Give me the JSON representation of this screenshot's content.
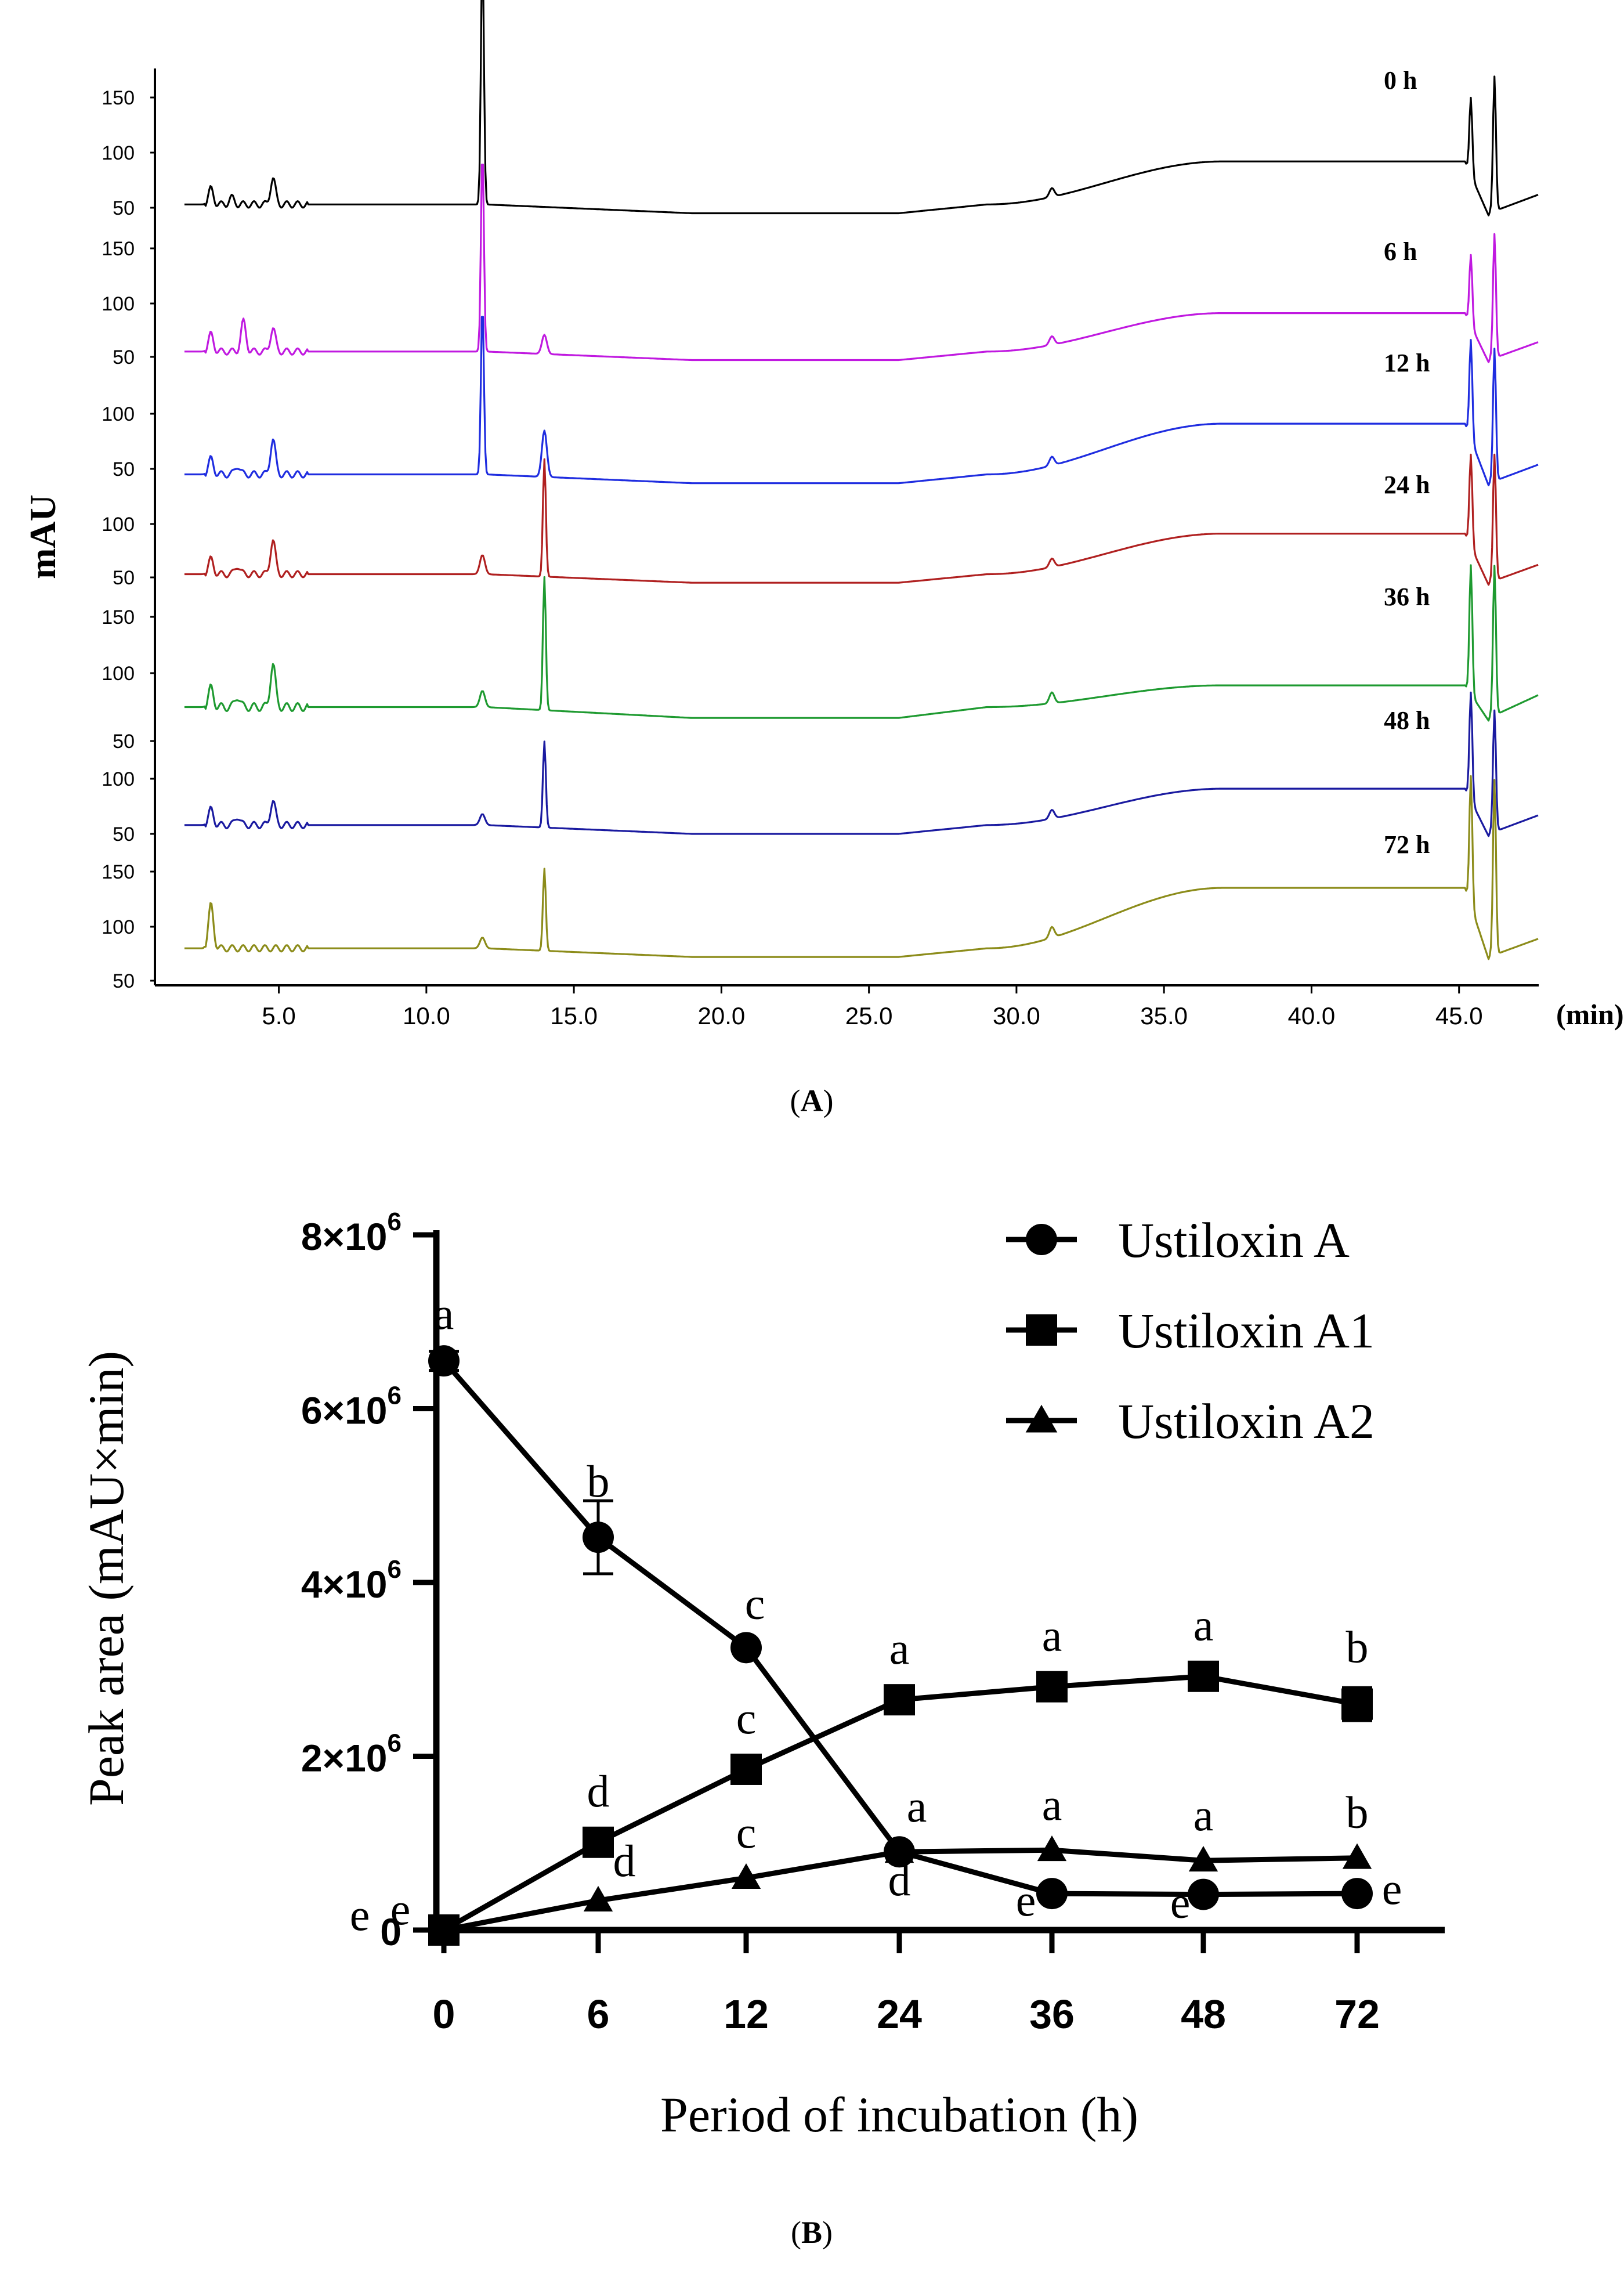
{
  "panel_a": {
    "panel_label_prefix": "(",
    "panel_label_letter": "A",
    "panel_label_suffix": ")"
  },
  "panel_b": {
    "panel_label_prefix": "(",
    "panel_label_letter": "B",
    "panel_label_suffix": ")"
  },
  "chart_data": [
    {
      "type": "line",
      "title": "",
      "xlabel": "(min)",
      "ylabel": "mAU",
      "xlim": [
        0.8,
        47.7
      ],
      "xticks": [
        "5.0",
        "10.0",
        "15.0",
        "20.0",
        "25.0",
        "30.0",
        "35.0",
        "40.0",
        "45.0"
      ],
      "xtick_values": [
        5,
        10,
        15,
        20,
        25,
        30,
        35,
        40,
        45
      ],
      "traces": [
        {
          "name": "0 h",
          "color": "#000000",
          "yticks": [
            "150",
            "100",
            "50"
          ],
          "baseline": 53,
          "humpTop": 92,
          "peaks": [
            [
              2.7,
              14
            ],
            [
              3.4,
              6
            ],
            [
              4.8,
              24
            ],
            [
              11.9,
              235
            ],
            [
              14.0,
              0
            ],
            [
              31.2,
              8
            ],
            [
              45.4,
              70
            ],
            [
              46.2,
              122
            ]
          ]
        },
        {
          "name": "6 h",
          "color": "#c019e0",
          "yticks": [
            "150",
            "100",
            "50"
          ],
          "baseline": 55,
          "humpTop": 91,
          "peaks": [
            [
              2.7,
              16
            ],
            [
              3.8,
              28
            ],
            [
              4.8,
              22
            ],
            [
              11.9,
              190
            ],
            [
              14.0,
              18
            ],
            [
              31.2,
              8
            ],
            [
              45.4,
              66
            ],
            [
              46.2,
              116
            ]
          ]
        },
        {
          "name": "12 h",
          "color": "#1f2de0",
          "yticks": [
            "100",
            "50"
          ],
          "baseline": 45,
          "humpTop": 91,
          "peaks": [
            [
              2.7,
              14
            ],
            [
              3.6,
              8
            ],
            [
              4.8,
              32
            ],
            [
              11.9,
              155
            ],
            [
              14.0,
              42
            ],
            [
              31.2,
              8
            ],
            [
              45.4,
              90
            ],
            [
              46.2,
              120
            ]
          ]
        },
        {
          "name": "24 h",
          "color": "#b02020",
          "yticks": [
            "100",
            "50"
          ],
          "baseline": 53,
          "humpTop": 91,
          "peaks": [
            [
              2.7,
              14
            ],
            [
              3.6,
              8
            ],
            [
              4.8,
              32
            ],
            [
              11.9,
              18
            ],
            [
              14.0,
              110
            ],
            [
              31.2,
              8
            ],
            [
              45.4,
              86
            ],
            [
              46.2,
              118
            ]
          ]
        },
        {
          "name": "36 h",
          "color": "#1e9a30",
          "yticks": [
            "150",
            "100",
            "50"
          ],
          "baseline": 75,
          "humpTop": 91,
          "peaks": [
            [
              2.7,
              14
            ],
            [
              3.6,
              8
            ],
            [
              4.8,
              32
            ],
            [
              11.9,
              12
            ],
            [
              14.0,
              98
            ],
            [
              31.2,
              8
            ],
            [
              45.4,
              95
            ],
            [
              46.2,
              110
            ]
          ]
        },
        {
          "name": "48 h",
          "color": "#1a1aa0",
          "yticks": [
            "100",
            "50"
          ],
          "baseline": 58,
          "humpTop": 91,
          "peaks": [
            [
              2.7,
              14
            ],
            [
              3.6,
              8
            ],
            [
              4.8,
              22
            ],
            [
              11.9,
              10
            ],
            [
              14.0,
              78
            ],
            [
              31.2,
              8
            ],
            [
              45.4,
              98
            ],
            [
              46.2,
              110
            ]
          ]
        },
        {
          "name": "72 h",
          "color": "#8c8c1a",
          "yticks": [
            "150",
            "100",
            "50"
          ],
          "baseline": 80,
          "humpTop": 136,
          "peaks": [
            [
              2.7,
              40
            ],
            [
              11.9,
              10
            ],
            [
              14.0,
              76
            ],
            [
              31.2,
              10
            ],
            [
              45.4,
              120
            ],
            [
              46.2,
              162
            ]
          ]
        }
      ]
    },
    {
      "type": "line",
      "title": "",
      "xlabel": "Period of incubation (h)",
      "ylabel": "Peak area (mAU×min)",
      "categories": [
        "0",
        "6",
        "12",
        "24",
        "36",
        "48",
        "72"
      ],
      "ylim": [
        0,
        8000000
      ],
      "ytick_labels": [
        {
          "value": 0,
          "mantissa": "0",
          "base": "",
          "exponent": ""
        },
        {
          "value": 2000000,
          "mantissa": "2",
          "base": "×10",
          "exponent": "6"
        },
        {
          "value": 4000000,
          "mantissa": "4",
          "base": "×10",
          "exponent": "6"
        },
        {
          "value": 6000000,
          "mantissa": "6",
          "base": "×10",
          "exponent": "6"
        },
        {
          "value": 8000000,
          "mantissa": "8",
          "base": "×10",
          "exponent": "6"
        }
      ],
      "legend_position": "top-right",
      "series": [
        {
          "name": "Ustiloxin A",
          "marker": "circle",
          "values": [
            6550000,
            4520000,
            3250000,
            900000,
            420000,
            410000,
            420000
          ],
          "errors": [
            110000,
            420000,
            0,
            0,
            0,
            0,
            0
          ],
          "letters": [
            "a",
            "b",
            "c",
            "d",
            "e",
            "e",
            "e"
          ]
        },
        {
          "name": "Ustiloxin A1",
          "marker": "square",
          "values": [
            0,
            1010000,
            1850000,
            2650000,
            2800000,
            2920000,
            2600000
          ],
          "errors": [
            0,
            0,
            0,
            0,
            0,
            60000,
            190000
          ],
          "letters": [
            "e",
            "d",
            "c",
            "a",
            "a",
            "a",
            "b"
          ]
        },
        {
          "name": "Ustiloxin A2",
          "marker": "triangle",
          "values": [
            0,
            340000,
            600000,
            900000,
            920000,
            800000,
            830000
          ],
          "errors": [
            0,
            0,
            0,
            0,
            0,
            0,
            0
          ],
          "letters": [
            "e",
            "d",
            "c",
            "a",
            "a",
            "a",
            "b"
          ]
        }
      ]
    }
  ]
}
